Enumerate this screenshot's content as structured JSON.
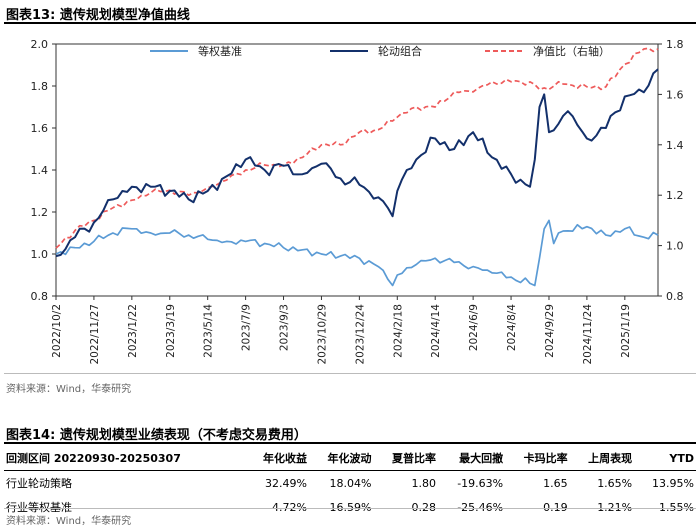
{
  "figure13": {
    "label": "图表13:",
    "title": "遗传规划模型净值曲线",
    "source": "资料来源：Wind，华泰研究"
  },
  "chart_data": {
    "type": "line",
    "title": "遗传规划模型净值曲线",
    "left_axis": {
      "ylim": [
        0.8,
        2.0
      ],
      "ticks": [
        0.8,
        1.0,
        1.2,
        1.4,
        1.6,
        1.8,
        2.0
      ]
    },
    "right_axis": {
      "ylim": [
        0.8,
        1.8
      ],
      "ticks": [
        0.8,
        1.0,
        1.2,
        1.4,
        1.6,
        1.8
      ]
    },
    "x_tick_labels": [
      "2022/10/2",
      "2022/11/27",
      "2023/1/22",
      "2023/3/19",
      "2023/5/14",
      "2023/7/9",
      "2023/9/3",
      "2023/10/29",
      "2023/12/24",
      "2024/2/18",
      "2024/4/14",
      "2024/6/9",
      "2024/8/4",
      "2024/9/29",
      "2024/11/24",
      "2025/1/19"
    ],
    "x_range": [
      0,
      127
    ],
    "x_tick_positions": [
      0,
      8,
      16,
      24,
      32,
      40,
      48,
      56,
      64,
      72,
      80,
      88,
      96,
      104,
      112,
      120
    ],
    "legend_position": "top",
    "series": [
      {
        "name": "等权基准",
        "axis": "left",
        "color": "#5b9bd5",
        "style": "solid",
        "x": [
          0,
          4,
          8,
          12,
          16,
          20,
          24,
          28,
          32,
          36,
          40,
          44,
          48,
          52,
          56,
          60,
          64,
          68,
          70,
          71,
          72,
          76,
          80,
          84,
          88,
          92,
          96,
          100,
          101,
          102,
          103,
          104,
          105,
          106,
          108,
          112,
          116,
          120,
          124,
          127
        ],
        "values": [
          1.0,
          1.03,
          1.06,
          1.1,
          1.12,
          1.1,
          1.1,
          1.09,
          1.07,
          1.06,
          1.06,
          1.05,
          1.03,
          1.02,
          1.0,
          0.99,
          0.98,
          0.94,
          0.88,
          0.85,
          0.9,
          0.95,
          0.98,
          0.96,
          0.94,
          0.91,
          0.89,
          0.86,
          0.85,
          0.98,
          1.12,
          1.16,
          1.05,
          1.1,
          1.11,
          1.13,
          1.09,
          1.12,
          1.08,
          1.09
        ]
      },
      {
        "name": "轮动组合",
        "axis": "left",
        "color": "#13306b",
        "style": "solid",
        "x": [
          0,
          4,
          8,
          12,
          16,
          20,
          24,
          28,
          32,
          36,
          40,
          44,
          48,
          52,
          56,
          60,
          64,
          68,
          70,
          71,
          72,
          74,
          76,
          80,
          84,
          88,
          92,
          96,
          100,
          101,
          102,
          103,
          104,
          106,
          108,
          112,
          116,
          120,
          124,
          127
        ],
        "values": [
          0.99,
          1.08,
          1.15,
          1.26,
          1.32,
          1.32,
          1.3,
          1.26,
          1.3,
          1.37,
          1.45,
          1.4,
          1.42,
          1.38,
          1.43,
          1.36,
          1.33,
          1.27,
          1.22,
          1.18,
          1.3,
          1.4,
          1.45,
          1.55,
          1.5,
          1.58,
          1.46,
          1.38,
          1.32,
          1.45,
          1.7,
          1.76,
          1.58,
          1.62,
          1.68,
          1.55,
          1.6,
          1.75,
          1.77,
          1.88
        ]
      },
      {
        "name": "净值比（右轴）",
        "axis": "right",
        "color": "#ee5a5a",
        "style": "dashed",
        "x": [
          0,
          4,
          8,
          12,
          16,
          20,
          24,
          28,
          32,
          36,
          40,
          44,
          48,
          52,
          56,
          60,
          64,
          68,
          72,
          76,
          80,
          84,
          88,
          92,
          96,
          100,
          102,
          104,
          106,
          108,
          112,
          116,
          120,
          124,
          127
        ],
        "values": [
          0.99,
          1.06,
          1.1,
          1.15,
          1.18,
          1.21,
          1.22,
          1.2,
          1.23,
          1.26,
          1.3,
          1.32,
          1.32,
          1.35,
          1.4,
          1.4,
          1.45,
          1.46,
          1.51,
          1.55,
          1.55,
          1.61,
          1.61,
          1.65,
          1.65,
          1.65,
          1.62,
          1.62,
          1.65,
          1.64,
          1.63,
          1.63,
          1.72,
          1.78,
          1.78
        ]
      }
    ]
  },
  "figure14": {
    "label": "图表14:",
    "title": "遗传规划模型业绩表现（不考虑交易费用）",
    "source": "资料来源：Wind，华泰研究",
    "columns": [
      "回测区间 20220930-20250307",
      "年化收益",
      "年化波动",
      "夏普比率",
      "最大回撤",
      "卡玛比率",
      "上周表现",
      "YTD"
    ],
    "rows": [
      [
        "行业轮动策略",
        "32.49%",
        "18.04%",
        "1.80",
        "-19.63%",
        "1.65",
        "1.65%",
        "13.95%"
      ],
      [
        "行业等权基准",
        "4.72%",
        "16.59%",
        "0.28",
        "-25.46%",
        "0.19",
        "1.21%",
        "1.55%"
      ]
    ]
  }
}
